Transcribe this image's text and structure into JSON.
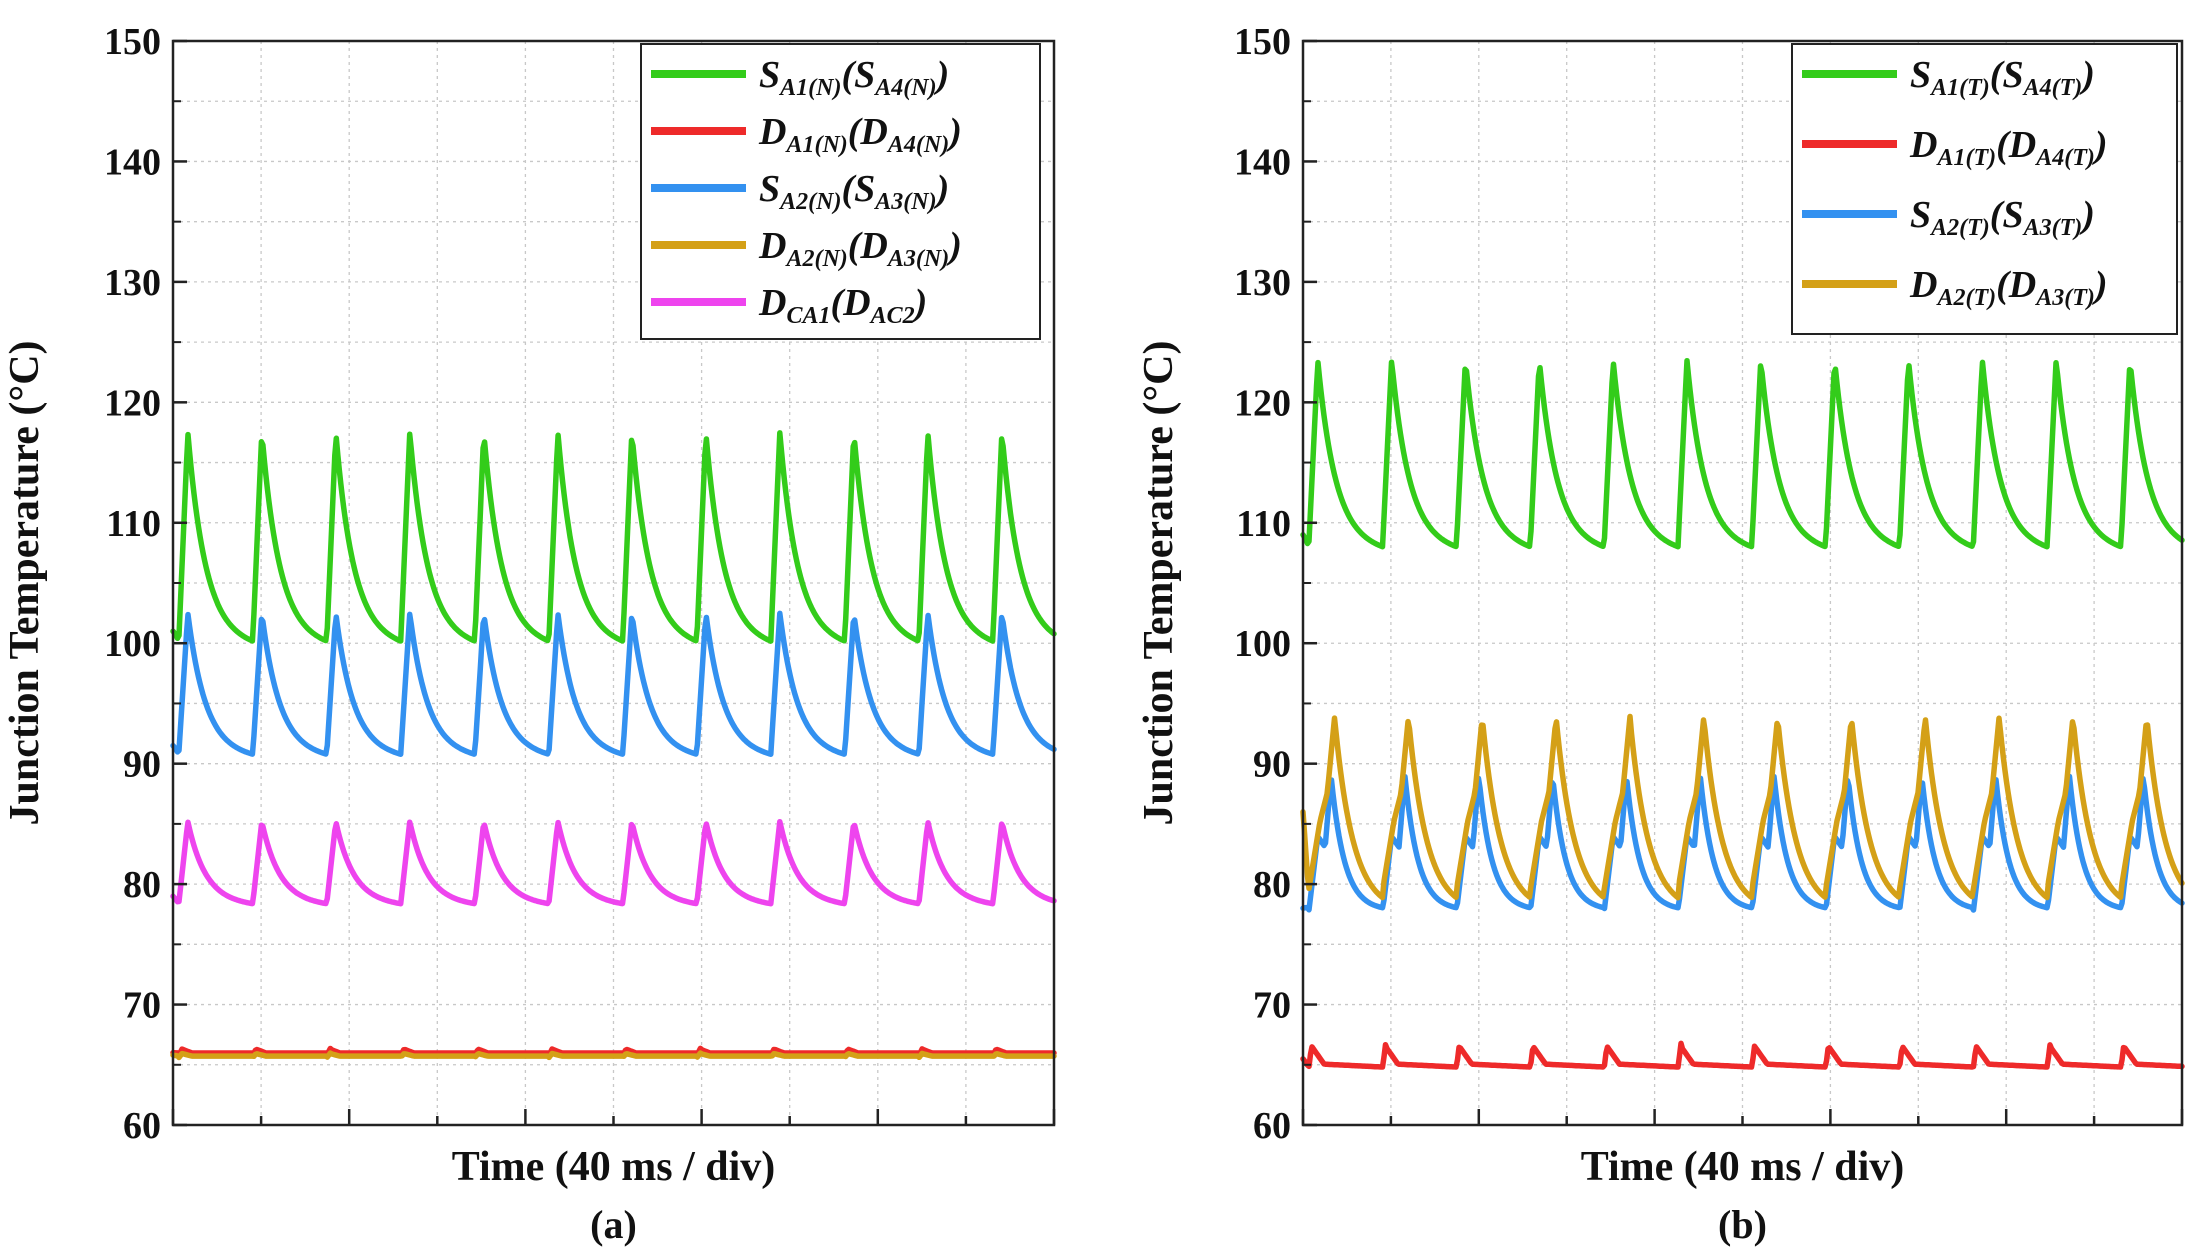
{
  "chart_data": [
    {
      "type": "line",
      "panel_label": "(a)",
      "xlabel": "Time (40 ms / div)",
      "ylabel": "Junction Temperature (°C)",
      "ylim": [
        60,
        150
      ],
      "yticks": [
        "60",
        "70",
        "80",
        "90",
        "100",
        "110",
        "120",
        "130",
        "140",
        "150"
      ],
      "x_divisions": 5,
      "grid": true,
      "legend_position": "top-right",
      "period_divisions": 0.42,
      "series": [
        {
          "name": "S_A1(N)(S_A4(N))",
          "legend_main": "S",
          "legend_sub": "A1(N)",
          "legend_paren_main": "S",
          "legend_paren_sub": "A4(N)",
          "color": "#33cc1a",
          "shape": "sawtooth",
          "min": 100.5,
          "max": 117.5,
          "start": 101
        },
        {
          "name": "D_A1(N)(D_A4(N))",
          "legend_main": "D",
          "legend_sub": "A1(N)",
          "legend_paren_main": "D",
          "legend_paren_sub": "A4(N)",
          "color": "#ee2a2a",
          "shape": "flat-ripple",
          "min": 65.8,
          "max": 66.4,
          "start": 66
        },
        {
          "name": "S_A2(N)(S_A3(N))",
          "legend_main": "S",
          "legend_sub": "A2(N)",
          "legend_paren_main": "S",
          "legend_paren_sub": "A3(N)",
          "color": "#3391f0",
          "shape": "sawtooth",
          "min": 91,
          "max": 102.5,
          "start": 91.5
        },
        {
          "name": "D_A2(N)(D_A3(N))",
          "legend_main": "D",
          "legend_sub": "A2(N)",
          "legend_paren_main": "D",
          "legend_paren_sub": "A3(N)",
          "color": "#d4a017",
          "shape": "flat-ripple",
          "min": 65.6,
          "max": 66,
          "start": 65.8
        },
        {
          "name": "D_CA1(D_AC2)",
          "legend_main": "D",
          "legend_sub": "CA1",
          "legend_paren_main": "D",
          "legend_paren_sub": "AC2",
          "color": "#ee44ee",
          "shape": "sawtooth",
          "min": 78.5,
          "max": 85.2,
          "start": 79
        }
      ]
    },
    {
      "type": "line",
      "panel_label": "(b)",
      "xlabel": "Time (40 ms / div)",
      "ylabel": "Junction Temperature (°C)",
      "ylim": [
        60,
        150
      ],
      "yticks": [
        "60",
        "70",
        "80",
        "90",
        "100",
        "110",
        "120",
        "130",
        "140",
        "150"
      ],
      "x_divisions": 5,
      "grid": true,
      "legend_position": "top-right",
      "period_divisions": 0.42,
      "series": [
        {
          "name": "S_A1(T)(S_A4(T))",
          "legend_main": "S",
          "legend_sub": "A1(T)",
          "legend_paren_main": "S",
          "legend_paren_sub": "A4(T)",
          "color": "#33cc1a",
          "shape": "sawtooth",
          "min": 108.3,
          "max": 123.5,
          "start": 109
        },
        {
          "name": "D_A1(T)(D_A4(T))",
          "legend_main": "D",
          "legend_sub": "A1(T)",
          "legend_paren_main": "D",
          "legend_paren_sub": "A4(T)",
          "color": "#ee2a2a",
          "shape": "spike",
          "min": 64.8,
          "max": 66.8,
          "start": 65.5
        },
        {
          "name": "S_A2(T)(S_A3(T))",
          "legend_main": "S",
          "legend_sub": "A2(T)",
          "legend_paren_main": "S",
          "legend_paren_sub": "A3(T)",
          "color": "#3391f0",
          "shape": "double-peak",
          "min": 77.8,
          "max": 89,
          "start": 78
        },
        {
          "name": "D_A2(T)(D_A3(T))",
          "legend_main": "D",
          "legend_sub": "A2(T)",
          "legend_paren_main": "D",
          "legend_paren_sub": "A3(T)",
          "color": "#d4a017",
          "shape": "double-peak-late",
          "min": 78,
          "max": 94,
          "start": 86
        }
      ]
    }
  ]
}
